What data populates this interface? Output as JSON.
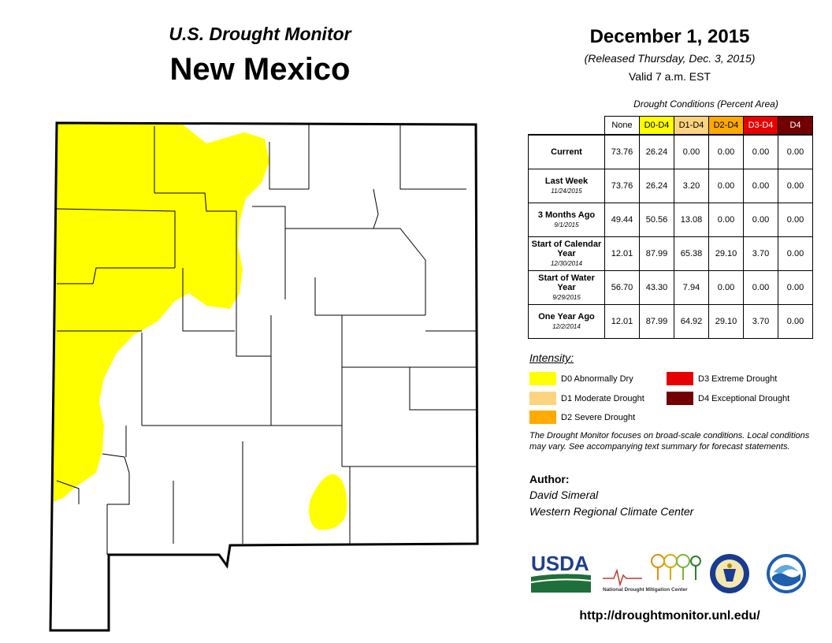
{
  "header": {
    "monitor_title": "U.S. Drought Monitor",
    "state": "New Mexico",
    "date": "December 1, 2015",
    "released": "(Released Thursday, Dec. 3, 2015)",
    "valid": "Valid 7 a.m. EST"
  },
  "table": {
    "caption": "Drought Conditions (Percent Area)",
    "columns": [
      {
        "label": "None",
        "color": "#ffffff"
      },
      {
        "label": "D0-D4",
        "color": "#ffff00"
      },
      {
        "label": "D1-D4",
        "color": "#fcd37f"
      },
      {
        "label": "D2-D4",
        "color": "#ffaa00"
      },
      {
        "label": "D3-D4",
        "color": "#e60000"
      },
      {
        "label": "D4",
        "color": "#730000"
      }
    ],
    "rows": [
      {
        "label": "Current",
        "sub": "",
        "values": [
          "73.76",
          "26.24",
          "0.00",
          "0.00",
          "0.00",
          "0.00"
        ]
      },
      {
        "label": "Last Week",
        "sub": "11/24/2015",
        "values": [
          "73.76",
          "26.24",
          "3.20",
          "0.00",
          "0.00",
          "0.00"
        ]
      },
      {
        "label": "3 Months Ago",
        "sub": "9/1/2015",
        "values": [
          "49.44",
          "50.56",
          "13.08",
          "0.00",
          "0.00",
          "0.00"
        ]
      },
      {
        "label": "Start of Calendar Year",
        "sub": "12/30/2014",
        "values": [
          "12.01",
          "87.99",
          "65.38",
          "29.10",
          "3.70",
          "0.00"
        ]
      },
      {
        "label": "Start of Water Year",
        "sub": "9/29/2015",
        "values": [
          "56.70",
          "43.30",
          "7.94",
          "0.00",
          "0.00",
          "0.00"
        ]
      },
      {
        "label": "One Year Ago",
        "sub": "12/2/2014",
        "values": [
          "12.01",
          "87.99",
          "64.92",
          "29.10",
          "3.70",
          "0.00"
        ]
      }
    ]
  },
  "legend": {
    "title": "Intensity:",
    "items": [
      {
        "label": "D0 Abnormally Dry",
        "color": "#ffff00"
      },
      {
        "label": "D1 Moderate Drought",
        "color": "#fcd37f"
      },
      {
        "label": "D2 Severe Drought",
        "color": "#ffaa00"
      },
      {
        "label": "D3 Extreme Drought",
        "color": "#e60000"
      },
      {
        "label": "D4 Exceptional Drought",
        "color": "#730000"
      }
    ]
  },
  "disclaimer": "The Drought Monitor focuses on broad-scale conditions. Local conditions may vary. See accompanying text summary for forecast statements.",
  "author": {
    "label": "Author:",
    "name": "David Simeral",
    "org": "Western Regional Climate Center"
  },
  "logos": {
    "usda": "USDA",
    "ndmc": "National Drought Mitigation Center"
  },
  "url": "http://droughtmonitor.unl.edu/"
}
